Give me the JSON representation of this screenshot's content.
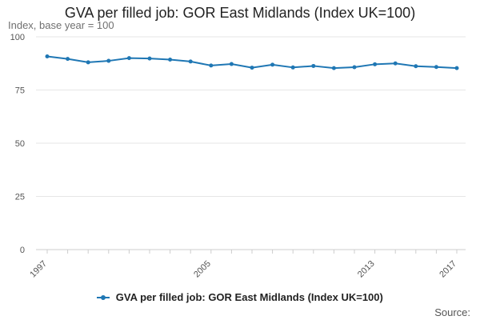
{
  "chart_data": {
    "type": "line",
    "title": "GVA per filled job: GOR East Midlands (Index UK=100)",
    "ylabel": "Index, base year = 100",
    "xlabel": "",
    "x": [
      1997,
      1998,
      1999,
      2000,
      2001,
      2002,
      2003,
      2004,
      2005,
      2006,
      2007,
      2008,
      2009,
      2010,
      2011,
      2012,
      2013,
      2014,
      2015,
      2016,
      2017
    ],
    "series": [
      {
        "name": "GVA per filled job: GOR East Midlands (Index UK=100)",
        "values": [
          90.8,
          89.6,
          88.0,
          88.7,
          90.0,
          89.8,
          89.3,
          88.4,
          86.5,
          87.2,
          85.5,
          86.9,
          85.6,
          86.3,
          85.3,
          85.7,
          87.1,
          87.5,
          86.2,
          85.8,
          85.3
        ]
      }
    ],
    "ylim": [
      0,
      100
    ],
    "y_ticks": [
      0,
      25,
      50,
      75,
      100
    ],
    "x_tick_labels": [
      "1997",
      "2005",
      "2013",
      "2017"
    ],
    "grid": "horizontal",
    "legend_position": "bottom",
    "series_color": "#1f77b4"
  },
  "source_label": "Source:"
}
